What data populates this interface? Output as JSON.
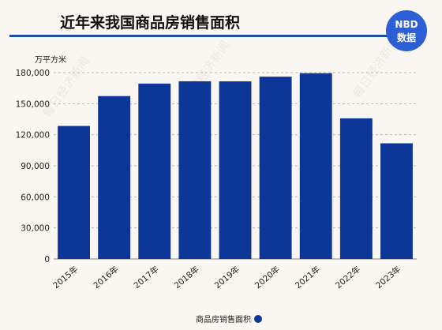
{
  "header": {
    "title": "近年来我国商品房销售面积",
    "badge_top": "NBD",
    "badge_bottom": "数据"
  },
  "watermark": "每日经济新闻",
  "colors": {
    "bar": "#0d3699",
    "title_rule": "#1f4ca6",
    "badge": "#2c5fd6",
    "background": "#faf6f1",
    "grid": "#b8b8b8",
    "text": "#222222"
  },
  "chart_data": {
    "type": "bar",
    "categories": [
      "2015年",
      "2016年",
      "2017年",
      "2018年",
      "2019年",
      "2020年",
      "2021年",
      "2022年",
      "2023年"
    ],
    "series": [
      {
        "name": "商品房销售面积",
        "values": [
          128495,
          157349,
          169408,
          171654,
          171558,
          176086,
          179433,
          135837,
          111735
        ]
      }
    ],
    "ylabel": "万平方米",
    "ylim": [
      0,
      180000
    ],
    "yticks": [
      0,
      30000,
      60000,
      90000,
      120000,
      150000,
      180000
    ],
    "ytick_labels": [
      "0",
      "30,000",
      "60,000",
      "90,000",
      "120,000",
      "150,000",
      "180,000"
    ],
    "grid": true,
    "legend_position": "bottom"
  }
}
